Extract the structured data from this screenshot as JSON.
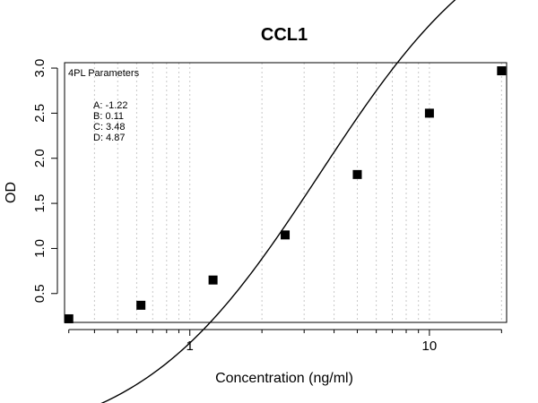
{
  "chart_data": {
    "type": "scatter",
    "title": "CCL1",
    "xlabel": "Concentration (ng/ml)",
    "ylabel": "OD",
    "x_scale": "log",
    "xlim": [
      0.3,
      21
    ],
    "ylim": [
      0.18,
      3.06
    ],
    "grid": "vertical-dotted",
    "x_ticks": [
      1,
      10
    ],
    "x_tick_labels": [
      "1",
      "10"
    ],
    "y_ticks": [
      0.5,
      1.0,
      1.5,
      2.0,
      2.5,
      3.0
    ],
    "y_tick_labels": [
      "0.5",
      "1.0",
      "1.5",
      "2.0",
      "2.5",
      "3.0"
    ],
    "points": [
      {
        "x": 0.3125,
        "y": 0.22
      },
      {
        "x": 0.625,
        "y": 0.37
      },
      {
        "x": 1.25,
        "y": 0.65
      },
      {
        "x": 2.5,
        "y": 1.15
      },
      {
        "x": 5,
        "y": 1.82
      },
      {
        "x": 10,
        "y": 2.5
      },
      {
        "x": 20,
        "y": 2.97
      }
    ],
    "fit": {
      "model": "4PL",
      "A": -1.22,
      "B": 0.11,
      "C": 3.48,
      "D": 4.87
    },
    "annotation": {
      "heading": "4PL Parameters",
      "lines": [
        "A: -1.22",
        "B: 0.11",
        "C: 3.48",
        "D: 4.87"
      ]
    }
  }
}
